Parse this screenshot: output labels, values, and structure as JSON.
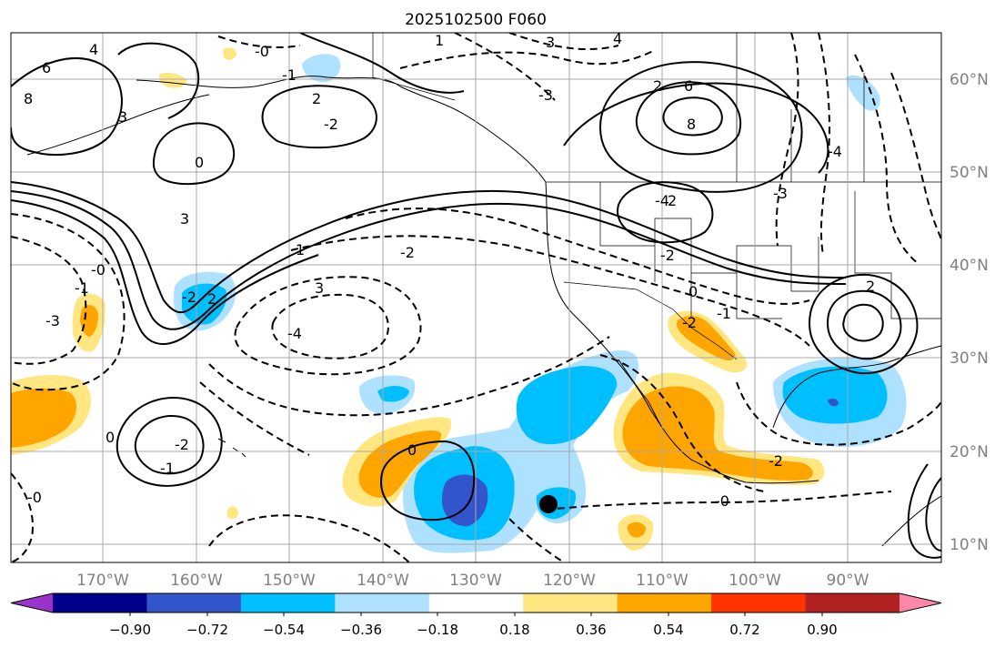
{
  "title": "2025102500 F060",
  "map": {
    "lon_ticks": [
      "170°W",
      "160°W",
      "150°W",
      "140°W",
      "130°W",
      "120°W",
      "110°W",
      "100°W",
      "90°W"
    ],
    "lat_ticks": [
      "60°N",
      "50°N",
      "40°N",
      "30°N",
      "20°N",
      "10°N"
    ],
    "lon_range": [
      -180,
      -80
    ],
    "lat_range": [
      8,
      65
    ],
    "gridlines": true
  },
  "colorbar": {
    "ticks": [
      "−0.90",
      "−0.72",
      "−0.54",
      "−0.36",
      "−0.18",
      "0.18",
      "0.36",
      "0.54",
      "0.72",
      "0.90"
    ],
    "colors": [
      "#9933cc",
      "#00008b",
      "#3355cc",
      "#00bfff",
      "#aee0ff",
      "#ffffff",
      "#ffe680",
      "#ffa500",
      "#ff3300",
      "#b22222",
      "#ff88aa"
    ],
    "extend": "both"
  },
  "marker": {
    "label": ""
  },
  "contour_labels": [
    "-0",
    "1",
    "3",
    "4",
    "6",
    "8",
    "2",
    "0",
    "-3",
    "-2",
    "2",
    "8",
    "6",
    "3",
    "4",
    "-4",
    "-3",
    "-2",
    "-1",
    "0",
    "1",
    "-0",
    "-1",
    "2",
    "-2",
    "-2",
    "0",
    "-0",
    "-2",
    "-4",
    "3",
    "-4",
    "-0",
    "-3",
    "2",
    "3",
    "-2",
    "-1",
    "0",
    "-2",
    "2",
    "-1"
  ]
}
